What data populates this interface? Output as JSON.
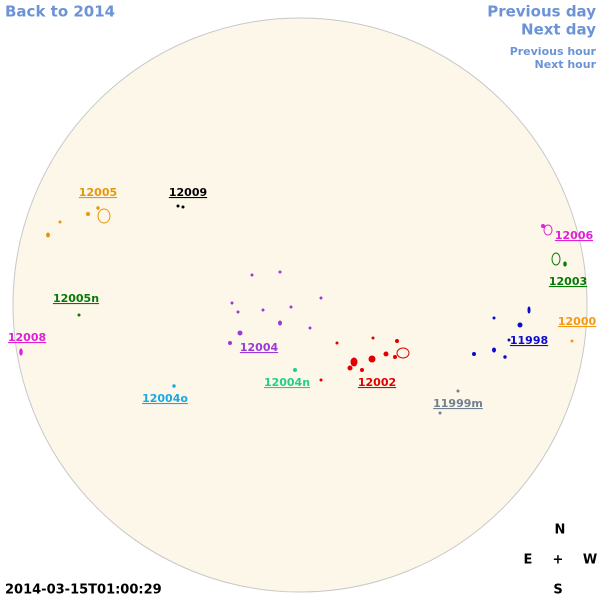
{
  "nav": {
    "back": "Back to 2014",
    "previous_day": "Previous day",
    "next_day": "Next day",
    "previous_hour": "Previous hour",
    "next_hour": "Next hour"
  },
  "regions": [
    {
      "label": "12005",
      "color": "#e8960a"
    },
    {
      "label": "12009",
      "color": "#000000"
    },
    {
      "label": "12006",
      "color": "#e020d8"
    },
    {
      "label": "12003",
      "color": "#067a06"
    },
    {
      "label": "12005n",
      "color": "#067a06"
    },
    {
      "label": "12008",
      "color": "#e020d8"
    },
    {
      "label": "12000",
      "color": "#f59a10"
    },
    {
      "label": "11998",
      "color": "#0a0ad0"
    },
    {
      "label": "12004",
      "color": "#9a3ad8"
    },
    {
      "label": "12004n",
      "color": "#22cf8a"
    },
    {
      "label": "12002",
      "color": "#e00000"
    },
    {
      "label": "12004o",
      "color": "#1aa8e0"
    },
    {
      "label": "11999m",
      "color": "#708090"
    }
  ],
  "compass": {
    "north": "N",
    "east": "E",
    "center": "+",
    "west": "W",
    "south": "S"
  },
  "timestamp": "2014-03-15T01:00:29"
}
